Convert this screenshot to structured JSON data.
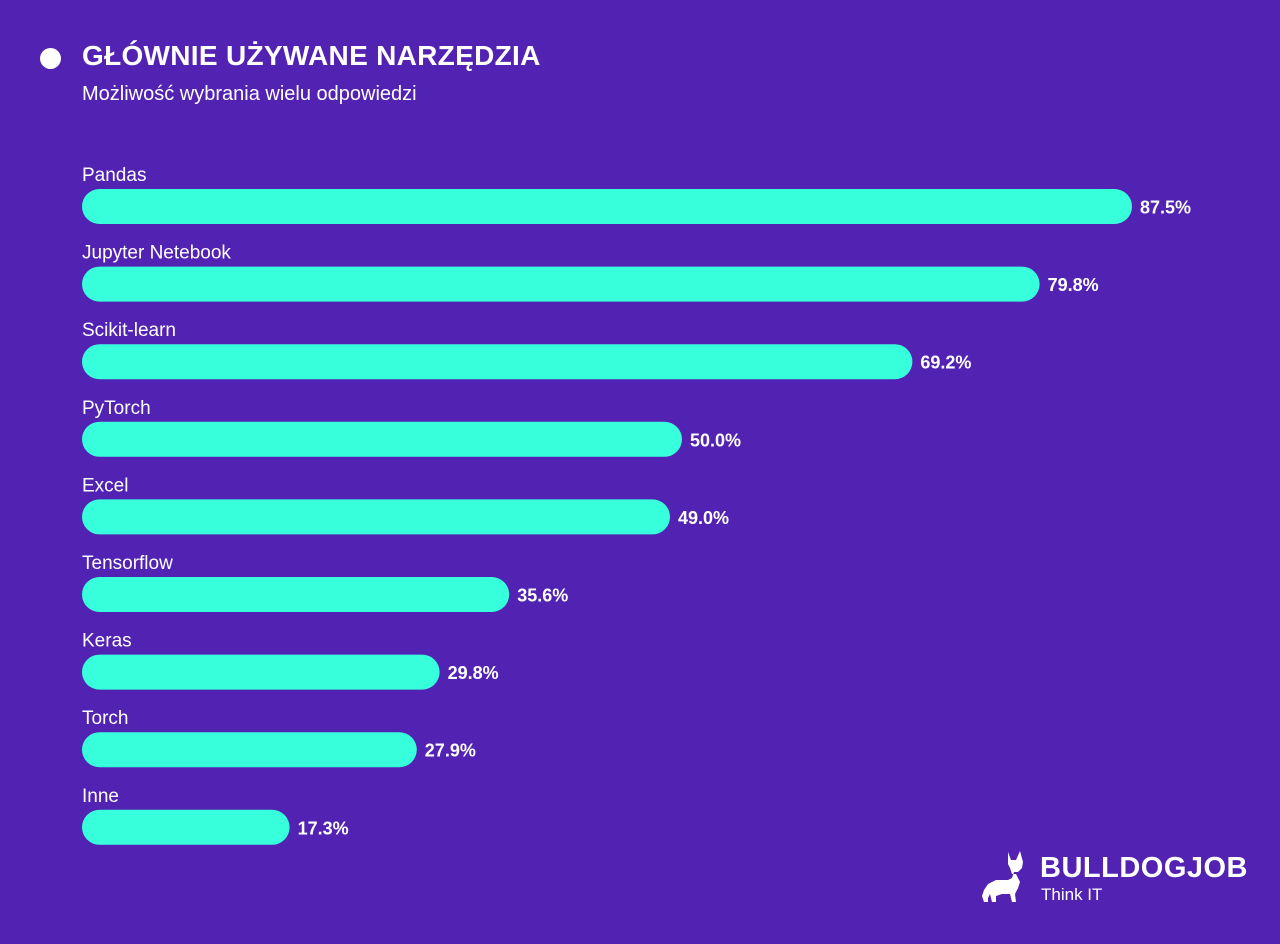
{
  "header": {
    "title": "GŁÓWNIE UŻYWANE NARZĘDZIA",
    "subtitle": "Możliwość wybrania wielu odpowiedzi"
  },
  "chart_data": {
    "type": "bar",
    "orientation": "horizontal",
    "title": "GŁÓWNIE UŻYWANE NARZĘDZIA",
    "subtitle": "Możliwość wybrania wielu odpowiedzi",
    "categories": [
      "Pandas",
      "Jupyter Netebook",
      "Scikit-learn",
      "PyTorch",
      "Excel",
      "Tensorflow",
      "Keras",
      "Torch",
      "Inne"
    ],
    "values": [
      87.5,
      79.8,
      69.2,
      50.0,
      49.0,
      35.6,
      29.8,
      27.9,
      17.3
    ],
    "value_labels": [
      "87.5%",
      "79.8%",
      "69.2%",
      "50.0%",
      "49.0%",
      "35.6%",
      "29.8%",
      "27.9%",
      "17.3%"
    ],
    "unit": "%",
    "xlim": [
      0,
      100
    ],
    "grid": false,
    "legend": "none",
    "colors": {
      "background": "#5222b2",
      "bar": "#38ffdb",
      "text": "#ffffff"
    }
  },
  "logo": {
    "name": "BULLDOGJOB",
    "tagline": "Think IT",
    "icon": "bulldog-icon"
  }
}
